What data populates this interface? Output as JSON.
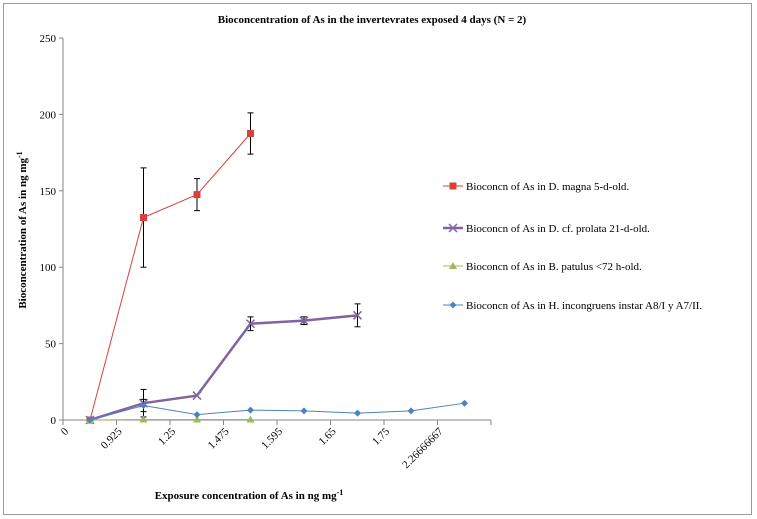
{
  "chart_data": {
    "type": "line",
    "title": "Bioconcentration of As in the invertevrates exposed  4 days (N = 2)",
    "xlabel": "Exposure concentration  of As in ng  mg",
    "xlabel_sup": "-1",
    "ylabel": "Bioconcentration of As  in ng mg",
    "ylabel_sup": "-1",
    "categories": [
      "0",
      "0.925",
      "1.25",
      "1.475",
      "1.595",
      "1.65",
      "1.75",
      "2.26666667"
    ],
    "ylim": [
      0,
      250
    ],
    "yticks": [
      0,
      50,
      100,
      150,
      200,
      250
    ],
    "grid": false,
    "legend_position": "right",
    "series": [
      {
        "name": "Bioconcn of As in D. magna 5-d-old.",
        "color": "#d9403a",
        "marker": "square",
        "stroke_width": 1,
        "values": [
          0,
          132.5,
          147.5,
          187.5,
          null,
          null,
          null,
          null
        ],
        "error": [
          null,
          32.5,
          10.5,
          13.5,
          null,
          null,
          null,
          null
        ]
      },
      {
        "name": "Bioconcn of As in D. cf. prolata 21-d-old.",
        "color": "#8064a2",
        "marker": "x",
        "stroke_width": 2.5,
        "values": [
          0,
          11,
          16,
          63,
          65,
          68.5,
          null,
          null
        ],
        "error": [
          null,
          9,
          null,
          4.5,
          2.5,
          7.5,
          null,
          null
        ]
      },
      {
        "name": "Bioconcn of As in B. patulus <72 h-old.",
        "color": "#9bbb59",
        "marker": "triangle",
        "stroke_width": 1,
        "values": [
          0,
          0.3,
          0.3,
          0.3,
          null,
          null,
          null,
          null
        ],
        "error": [
          null,
          null,
          null,
          null,
          null,
          null,
          null,
          null
        ]
      },
      {
        "name": "Bioconcn of As in H. incongruens instar A8/I y A7/II.",
        "color": "#4f81bd",
        "marker": "diamond",
        "stroke_width": 1,
        "values": [
          0,
          9.5,
          3.5,
          6.5,
          6,
          4.5,
          6,
          11
        ],
        "error": [
          null,
          4,
          null,
          null,
          null,
          null,
          null,
          null
        ]
      }
    ]
  }
}
